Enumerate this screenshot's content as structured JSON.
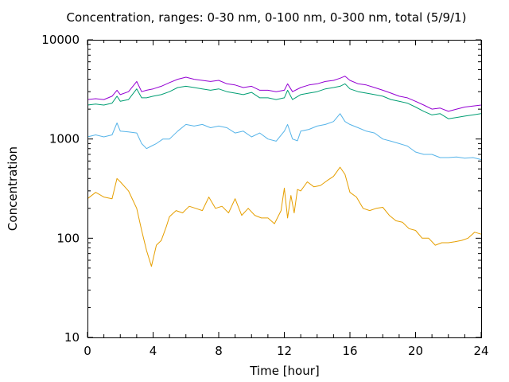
{
  "chart_data": {
    "type": "line",
    "title": "Concentration, ranges: 0-30 nm, 0-100 nm, 0-300 nm, total (5/9/1)",
    "xlabel": "Time [hour]",
    "ylabel": "Concentration",
    "xlim": [
      0,
      24
    ],
    "ylim": [
      10,
      10000
    ],
    "yscale": "log",
    "xticks": [
      0,
      4,
      8,
      12,
      16,
      20,
      24
    ],
    "yticks": [
      10,
      100,
      1000,
      10000
    ],
    "xtick_labels": [
      "0",
      "4",
      "8",
      "12",
      "16",
      "20",
      "24"
    ],
    "ytick_labels": [
      "10",
      "100",
      "1000",
      "10000"
    ],
    "grid": false,
    "legend": "none",
    "series": [
      {
        "color": "#e69f00",
        "x": [
          0,
          0.5,
          1,
          1.5,
          1.8,
          2,
          2.5,
          3,
          3.3,
          3.6,
          3.9,
          4.2,
          4.5,
          4.8,
          5.0,
          5.4,
          5.8,
          6.2,
          6.6,
          7,
          7.4,
          7.8,
          8.2,
          8.6,
          9,
          9.4,
          9.8,
          10.2,
          10.6,
          11,
          11.4,
          11.8,
          12.0,
          12.2,
          12.4,
          12.6,
          12.8,
          13,
          13.4,
          13.8,
          14.2,
          14.6,
          15,
          15.4,
          15.7,
          16,
          16.4,
          16.8,
          17.2,
          17.6,
          18,
          18.4,
          18.8,
          19.2,
          19.6,
          20,
          20.4,
          20.8,
          21.2,
          21.6,
          22,
          22.4,
          22.8,
          23.2,
          23.6,
          24
        ],
        "y": [
          250,
          290,
          260,
          250,
          400,
          370,
          300,
          200,
          120,
          75,
          52,
          85,
          95,
          130,
          165,
          190,
          180,
          210,
          200,
          190,
          260,
          200,
          210,
          180,
          250,
          170,
          200,
          170,
          160,
          160,
          140,
          190,
          320,
          160,
          270,
          180,
          310,
          300,
          370,
          330,
          340,
          380,
          420,
          520,
          440,
          290,
          260,
          200,
          190,
          200,
          205,
          170,
          150,
          145,
          125,
          120,
          100,
          100,
          85,
          90,
          90,
          92,
          95,
          100,
          115,
          110
        ]
      },
      {
        "color": "#56b4e9",
        "x": [
          0,
          0.5,
          1,
          1.5,
          1.8,
          2,
          2.5,
          3,
          3.3,
          3.6,
          3.9,
          4.2,
          4.6,
          5,
          5.5,
          6,
          6.5,
          7,
          7.5,
          8,
          8.5,
          9,
          9.5,
          10,
          10.5,
          11,
          11.5,
          12,
          12.2,
          12.5,
          12.8,
          13,
          13.5,
          14,
          14.5,
          15,
          15.4,
          15.7,
          16,
          16.5,
          17,
          17.5,
          18,
          18.5,
          19,
          19.5,
          20,
          20.5,
          21,
          21.5,
          22,
          22.5,
          23,
          23.5,
          24
        ],
        "y": [
          1050,
          1100,
          1050,
          1100,
          1450,
          1200,
          1180,
          1150,
          900,
          800,
          850,
          900,
          1000,
          1000,
          1200,
          1400,
          1350,
          1400,
          1300,
          1350,
          1300,
          1150,
          1200,
          1050,
          1150,
          1000,
          950,
          1200,
          1400,
          1000,
          960,
          1200,
          1250,
          1350,
          1400,
          1500,
          1800,
          1500,
          1400,
          1300,
          1200,
          1150,
          1000,
          950,
          900,
          850,
          740,
          700,
          700,
          650,
          650,
          660,
          640,
          650,
          620
        ]
      },
      {
        "color": "#009e73",
        "x": [
          0,
          0.5,
          1,
          1.5,
          1.8,
          2,
          2.5,
          3,
          3.3,
          3.6,
          4,
          4.5,
          5,
          5.5,
          6,
          6.5,
          7,
          7.5,
          8,
          8.5,
          9,
          9.5,
          10,
          10.5,
          11,
          11.5,
          12,
          12.2,
          12.5,
          13,
          13.5,
          14,
          14.5,
          15,
          15.4,
          15.7,
          16,
          16.5,
          17,
          17.5,
          18,
          18.5,
          19,
          19.5,
          20,
          20.5,
          21,
          21.5,
          22,
          22.5,
          23,
          23.5,
          24
        ],
        "y": [
          2200,
          2250,
          2200,
          2300,
          2700,
          2400,
          2500,
          3200,
          2600,
          2600,
          2700,
          2800,
          3000,
          3300,
          3400,
          3300,
          3200,
          3100,
          3200,
          3000,
          2900,
          2800,
          2950,
          2600,
          2600,
          2500,
          2600,
          3100,
          2500,
          2800,
          2900,
          3000,
          3200,
          3300,
          3400,
          3600,
          3200,
          3000,
          2900,
          2800,
          2700,
          2500,
          2400,
          2300,
          2100,
          1900,
          1750,
          1800,
          1600,
          1650,
          1700,
          1750,
          1800
        ]
      },
      {
        "color": "#9400d3",
        "x": [
          0,
          0.5,
          1,
          1.5,
          1.8,
          2,
          2.5,
          3,
          3.3,
          3.6,
          4,
          4.5,
          5,
          5.5,
          6,
          6.5,
          7,
          7.5,
          8,
          8.5,
          9,
          9.5,
          10,
          10.5,
          11,
          11.5,
          12,
          12.2,
          12.5,
          13,
          13.5,
          14,
          14.5,
          15,
          15.4,
          15.7,
          16,
          16.5,
          17,
          17.5,
          18,
          18.5,
          19,
          19.5,
          20,
          20.5,
          21,
          21.5,
          22,
          22.5,
          23,
          23.5,
          24
        ],
        "y": [
          2500,
          2550,
          2500,
          2700,
          3100,
          2800,
          3000,
          3800,
          3000,
          3100,
          3200,
          3400,
          3700,
          4000,
          4200,
          4000,
          3900,
          3800,
          3900,
          3600,
          3500,
          3300,
          3400,
          3100,
          3100,
          3000,
          3100,
          3600,
          3000,
          3300,
          3500,
          3600,
          3800,
          3900,
          4100,
          4300,
          3900,
          3600,
          3500,
          3300,
          3100,
          2900,
          2700,
          2600,
          2400,
          2200,
          2000,
          2050,
          1900,
          2000,
          2100,
          2150,
          2200
        ]
      }
    ]
  }
}
